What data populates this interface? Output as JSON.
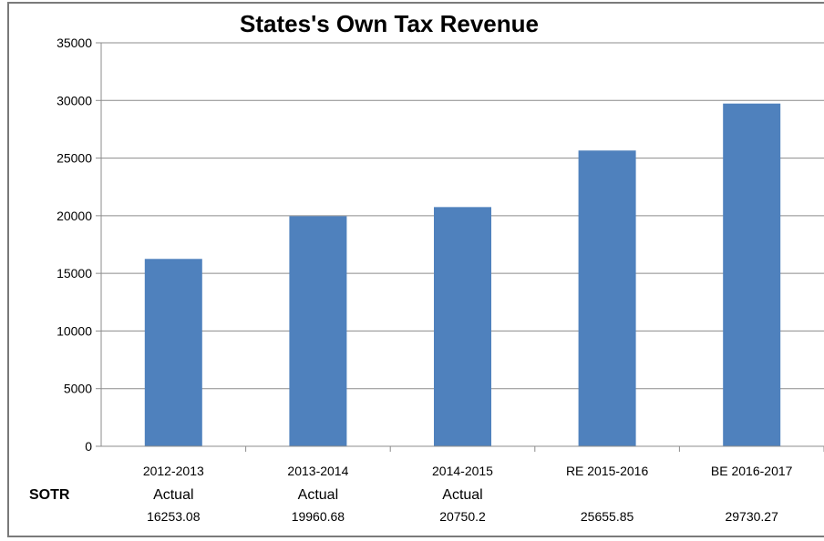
{
  "chart_data": {
    "type": "bar",
    "title": "States's Own Tax Revenue",
    "xlabel": "",
    "ylabel": "",
    "ylim": [
      0,
      35000
    ],
    "yticks": [
      0,
      5000,
      10000,
      15000,
      20000,
      25000,
      30000,
      35000
    ],
    "grid": true,
    "bar_color": "#4f81bd",
    "categories": [
      "2012-2013",
      "2013-2014",
      "2014-2015",
      "RE 2015-2016",
      "BE 2016-2017"
    ],
    "sublabels": [
      "Actual",
      "Actual",
      "Actual",
      "",
      ""
    ],
    "values": [
      16253.08,
      19960.68,
      20750.2,
      25655.85,
      29730.27
    ],
    "value_labels": [
      "16253.08",
      "19960.68",
      "20750.2",
      "25655.85",
      "29730.27"
    ],
    "row_label": "SOTR"
  }
}
